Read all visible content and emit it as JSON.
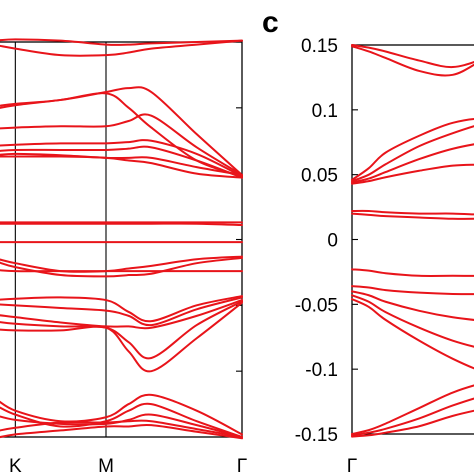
{
  "chart_data": [
    {
      "type": "line",
      "panel": "",
      "title": "",
      "xlabel": "",
      "ylabel": "",
      "ylim": [
        -0.15,
        0.15
      ],
      "x_ticks": [
        "K",
        "M",
        "Γ"
      ],
      "grid": false,
      "line_color": "#e8141a",
      "x": [
        0,
        0.5,
        1,
        2,
        3,
        3.5,
        4,
        5,
        6
      ],
      "series": [
        {
          "values": [
            0.151,
            0.151,
            0.152,
            0.151,
            0.148,
            0.148,
            0.149,
            0.15,
            0.151
          ]
        },
        {
          "values": [
            0.15,
            0.148,
            0.145,
            0.14,
            0.14,
            0.142,
            0.145,
            0.148,
            0.151
          ]
        },
        {
          "values": [
            0.1,
            0.101,
            0.103,
            0.106,
            0.112,
            0.115,
            0.112,
            0.08,
            0.049
          ]
        },
        {
          "values": [
            0.097,
            0.099,
            0.102,
            0.106,
            0.111,
            0.1,
            0.085,
            0.06,
            0.048
          ]
        },
        {
          "values": [
            0.083,
            0.084,
            0.085,
            0.086,
            0.086,
            0.09,
            0.094,
            0.07,
            0.049
          ]
        },
        {
          "values": [
            0.07,
            0.071,
            0.072,
            0.073,
            0.073,
            0.074,
            0.075,
            0.065,
            0.048
          ]
        },
        {
          "values": [
            0.067,
            0.067,
            0.068,
            0.068,
            0.068,
            0.069,
            0.07,
            0.06,
            0.047
          ]
        },
        {
          "values": [
            0.064,
            0.064,
            0.065,
            0.064,
            0.062,
            0.062,
            0.062,
            0.055,
            0.049
          ]
        },
        {
          "values": [
            0.063,
            0.063,
            0.063,
            0.063,
            0.062,
            0.06,
            0.058,
            0.05,
            0.047
          ]
        },
        {
          "values": [
            0.013,
            0.013,
            0.013,
            0.013,
            0.013,
            0.013,
            0.013,
            0.013,
            0.013
          ]
        },
        {
          "values": [
            0.012,
            0.012,
            0.012,
            0.012,
            0.012,
            0.012,
            0.012,
            0.012,
            0.011
          ]
        },
        {
          "values": [
            -0.002,
            -0.002,
            -0.002,
            -0.002,
            -0.002,
            -0.002,
            -0.002,
            -0.002,
            -0.002
          ]
        },
        {
          "values": [
            -0.012,
            -0.014,
            -0.018,
            -0.024,
            -0.024,
            -0.022,
            -0.02,
            -0.015,
            -0.013
          ]
        },
        {
          "values": [
            -0.013,
            -0.016,
            -0.021,
            -0.027,
            -0.028,
            -0.027,
            -0.026,
            -0.018,
            -0.014
          ]
        },
        {
          "values": [
            -0.023,
            -0.023,
            -0.024,
            -0.024,
            -0.024,
            -0.024,
            -0.024,
            -0.024,
            -0.024
          ]
        },
        {
          "values": [
            -0.047,
            -0.046,
            -0.045,
            -0.044,
            -0.046,
            -0.055,
            -0.062,
            -0.05,
            -0.043
          ]
        },
        {
          "values": [
            -0.048,
            -0.049,
            -0.05,
            -0.052,
            -0.054,
            -0.058,
            -0.065,
            -0.053,
            -0.044
          ]
        },
        {
          "values": [
            -0.056,
            -0.057,
            -0.059,
            -0.063,
            -0.066,
            -0.066,
            -0.067,
            -0.058,
            -0.046
          ]
        },
        {
          "values": [
            -0.06,
            -0.062,
            -0.064,
            -0.066,
            -0.067,
            -0.078,
            -0.09,
            -0.065,
            -0.047
          ]
        },
        {
          "values": [
            -0.067,
            -0.068,
            -0.069,
            -0.069,
            -0.067,
            -0.085,
            -0.1,
            -0.075,
            -0.048
          ]
        },
        {
          "values": [
            -0.115,
            -0.12,
            -0.13,
            -0.138,
            -0.135,
            -0.125,
            -0.118,
            -0.13,
            -0.148
          ]
        },
        {
          "values": [
            -0.12,
            -0.125,
            -0.133,
            -0.142,
            -0.138,
            -0.13,
            -0.125,
            -0.138,
            -0.15
          ]
        },
        {
          "values": [
            -0.13,
            -0.133,
            -0.137,
            -0.14,
            -0.14,
            -0.137,
            -0.133,
            -0.141,
            -0.15
          ]
        },
        {
          "values": [
            -0.148,
            -0.146,
            -0.143,
            -0.139,
            -0.139,
            -0.138,
            -0.138,
            -0.144,
            -0.15
          ]
        },
        {
          "values": [
            -0.152,
            -0.151,
            -0.148,
            -0.145,
            -0.142,
            -0.142,
            -0.141,
            -0.146,
            -0.151
          ]
        }
      ]
    },
    {
      "type": "line",
      "panel": "c",
      "title": "",
      "xlabel": "",
      "ylabel": "",
      "ylim": [
        -0.15,
        0.15
      ],
      "y_ticks": [
        "0.15",
        "0.1",
        "0.05",
        "0",
        "-0.05",
        "-0.1",
        "-0.15"
      ],
      "x_ticks": [
        "Γ"
      ],
      "grid": false,
      "line_color": "#e8141a",
      "x": [
        0,
        0.5,
        1,
        2,
        3,
        4,
        5
      ],
      "series": [
        {
          "values": [
            0.149,
            0.145,
            0.14,
            0.13,
            0.127,
            0.14,
            0.15
          ]
        },
        {
          "values": [
            0.15,
            0.148,
            0.145,
            0.138,
            0.133,
            0.14,
            0.148
          ]
        },
        {
          "values": [
            0.046,
            0.055,
            0.067,
            0.08,
            0.09,
            0.093,
            0.085
          ]
        },
        {
          "values": [
            0.045,
            0.05,
            0.058,
            0.072,
            0.082,
            0.09,
            0.094
          ]
        },
        {
          "values": [
            0.044,
            0.047,
            0.052,
            0.062,
            0.07,
            0.075,
            0.078
          ]
        },
        {
          "values": [
            0.043,
            0.045,
            0.048,
            0.053,
            0.057,
            0.058,
            0.06
          ]
        },
        {
          "values": [
            0.022,
            0.022,
            0.021,
            0.02,
            0.02,
            0.019,
            0.019
          ]
        },
        {
          "values": [
            0.02,
            0.019,
            0.018,
            0.017,
            0.016,
            0.016,
            0.016
          ]
        },
        {
          "values": [
            -0.023,
            -0.024,
            -0.026,
            -0.028,
            -0.028,
            -0.028,
            -0.027
          ]
        },
        {
          "values": [
            -0.036,
            -0.037,
            -0.039,
            -0.041,
            -0.042,
            -0.042,
            -0.041
          ]
        },
        {
          "values": [
            -0.04,
            -0.043,
            -0.048,
            -0.055,
            -0.06,
            -0.063,
            -0.065
          ]
        },
        {
          "values": [
            -0.043,
            -0.048,
            -0.056,
            -0.068,
            -0.078,
            -0.085,
            -0.09
          ]
        },
        {
          "values": [
            -0.046,
            -0.052,
            -0.062,
            -0.078,
            -0.092,
            -0.103,
            -0.11
          ]
        },
        {
          "values": [
            -0.15,
            -0.147,
            -0.142,
            -0.13,
            -0.118,
            -0.11,
            -0.105
          ]
        },
        {
          "values": [
            -0.151,
            -0.149,
            -0.146,
            -0.138,
            -0.128,
            -0.12,
            -0.115
          ]
        },
        {
          "values": [
            -0.152,
            -0.151,
            -0.149,
            -0.144,
            -0.136,
            -0.13,
            -0.125
          ]
        }
      ]
    }
  ]
}
